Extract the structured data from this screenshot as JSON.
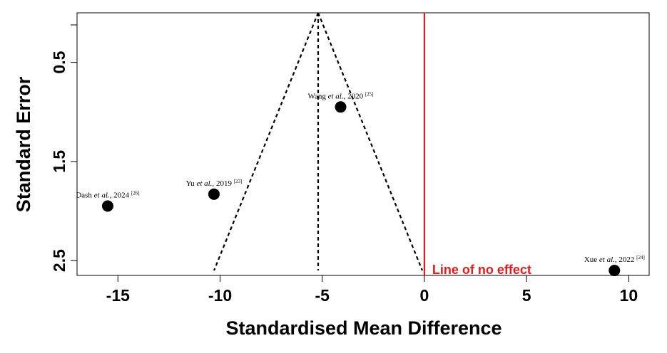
{
  "chart_data": {
    "type": "scatter",
    "title": "",
    "xlabel": "Standardised Mean Difference",
    "ylabel": "Standard Error",
    "xlim": [
      -17,
      11
    ],
    "ylim": [
      2.65,
      0.0
    ],
    "y_reversed": true,
    "x_ticks": [
      -15,
      -10,
      -5,
      0,
      5,
      10
    ],
    "x_tick_labels": [
      "-15",
      "-10",
      "-5",
      "0",
      "5",
      "10"
    ],
    "y_ticks": [
      0.5,
      1.5,
      2.5
    ],
    "y_tick_labels": [
      "0.5",
      "1.5",
      "2.5"
    ],
    "grid": false,
    "points": [
      {
        "name_before": "Wang ",
        "etal": "et al.,",
        "name_after": " 2020 ",
        "ref": "[25]",
        "x": -4.1,
        "y": 0.95
      },
      {
        "name_before": "Yu ",
        "etal": "et al.,",
        "name_after": " 2019 ",
        "ref": "[23]",
        "x": -10.3,
        "y": 1.83
      },
      {
        "name_before": "Dash ",
        "etal": "et al.,",
        "name_after": " 2024 ",
        "ref": "[26]",
        "x": -15.5,
        "y": 1.95
      },
      {
        "name_before": "Xue ",
        "etal": "et al.,",
        "name_after": " 2022 ",
        "ref": "[24]",
        "x": 9.3,
        "y": 2.6
      }
    ],
    "pooled_estimate": -5.2,
    "funnel_apex_se": 0.0,
    "funnel_base_se": 2.6,
    "no_effect_x": 0,
    "no_effect_label": "Line of no effect",
    "no_effect_color": "#e41a1c",
    "point_color": "#000000"
  }
}
